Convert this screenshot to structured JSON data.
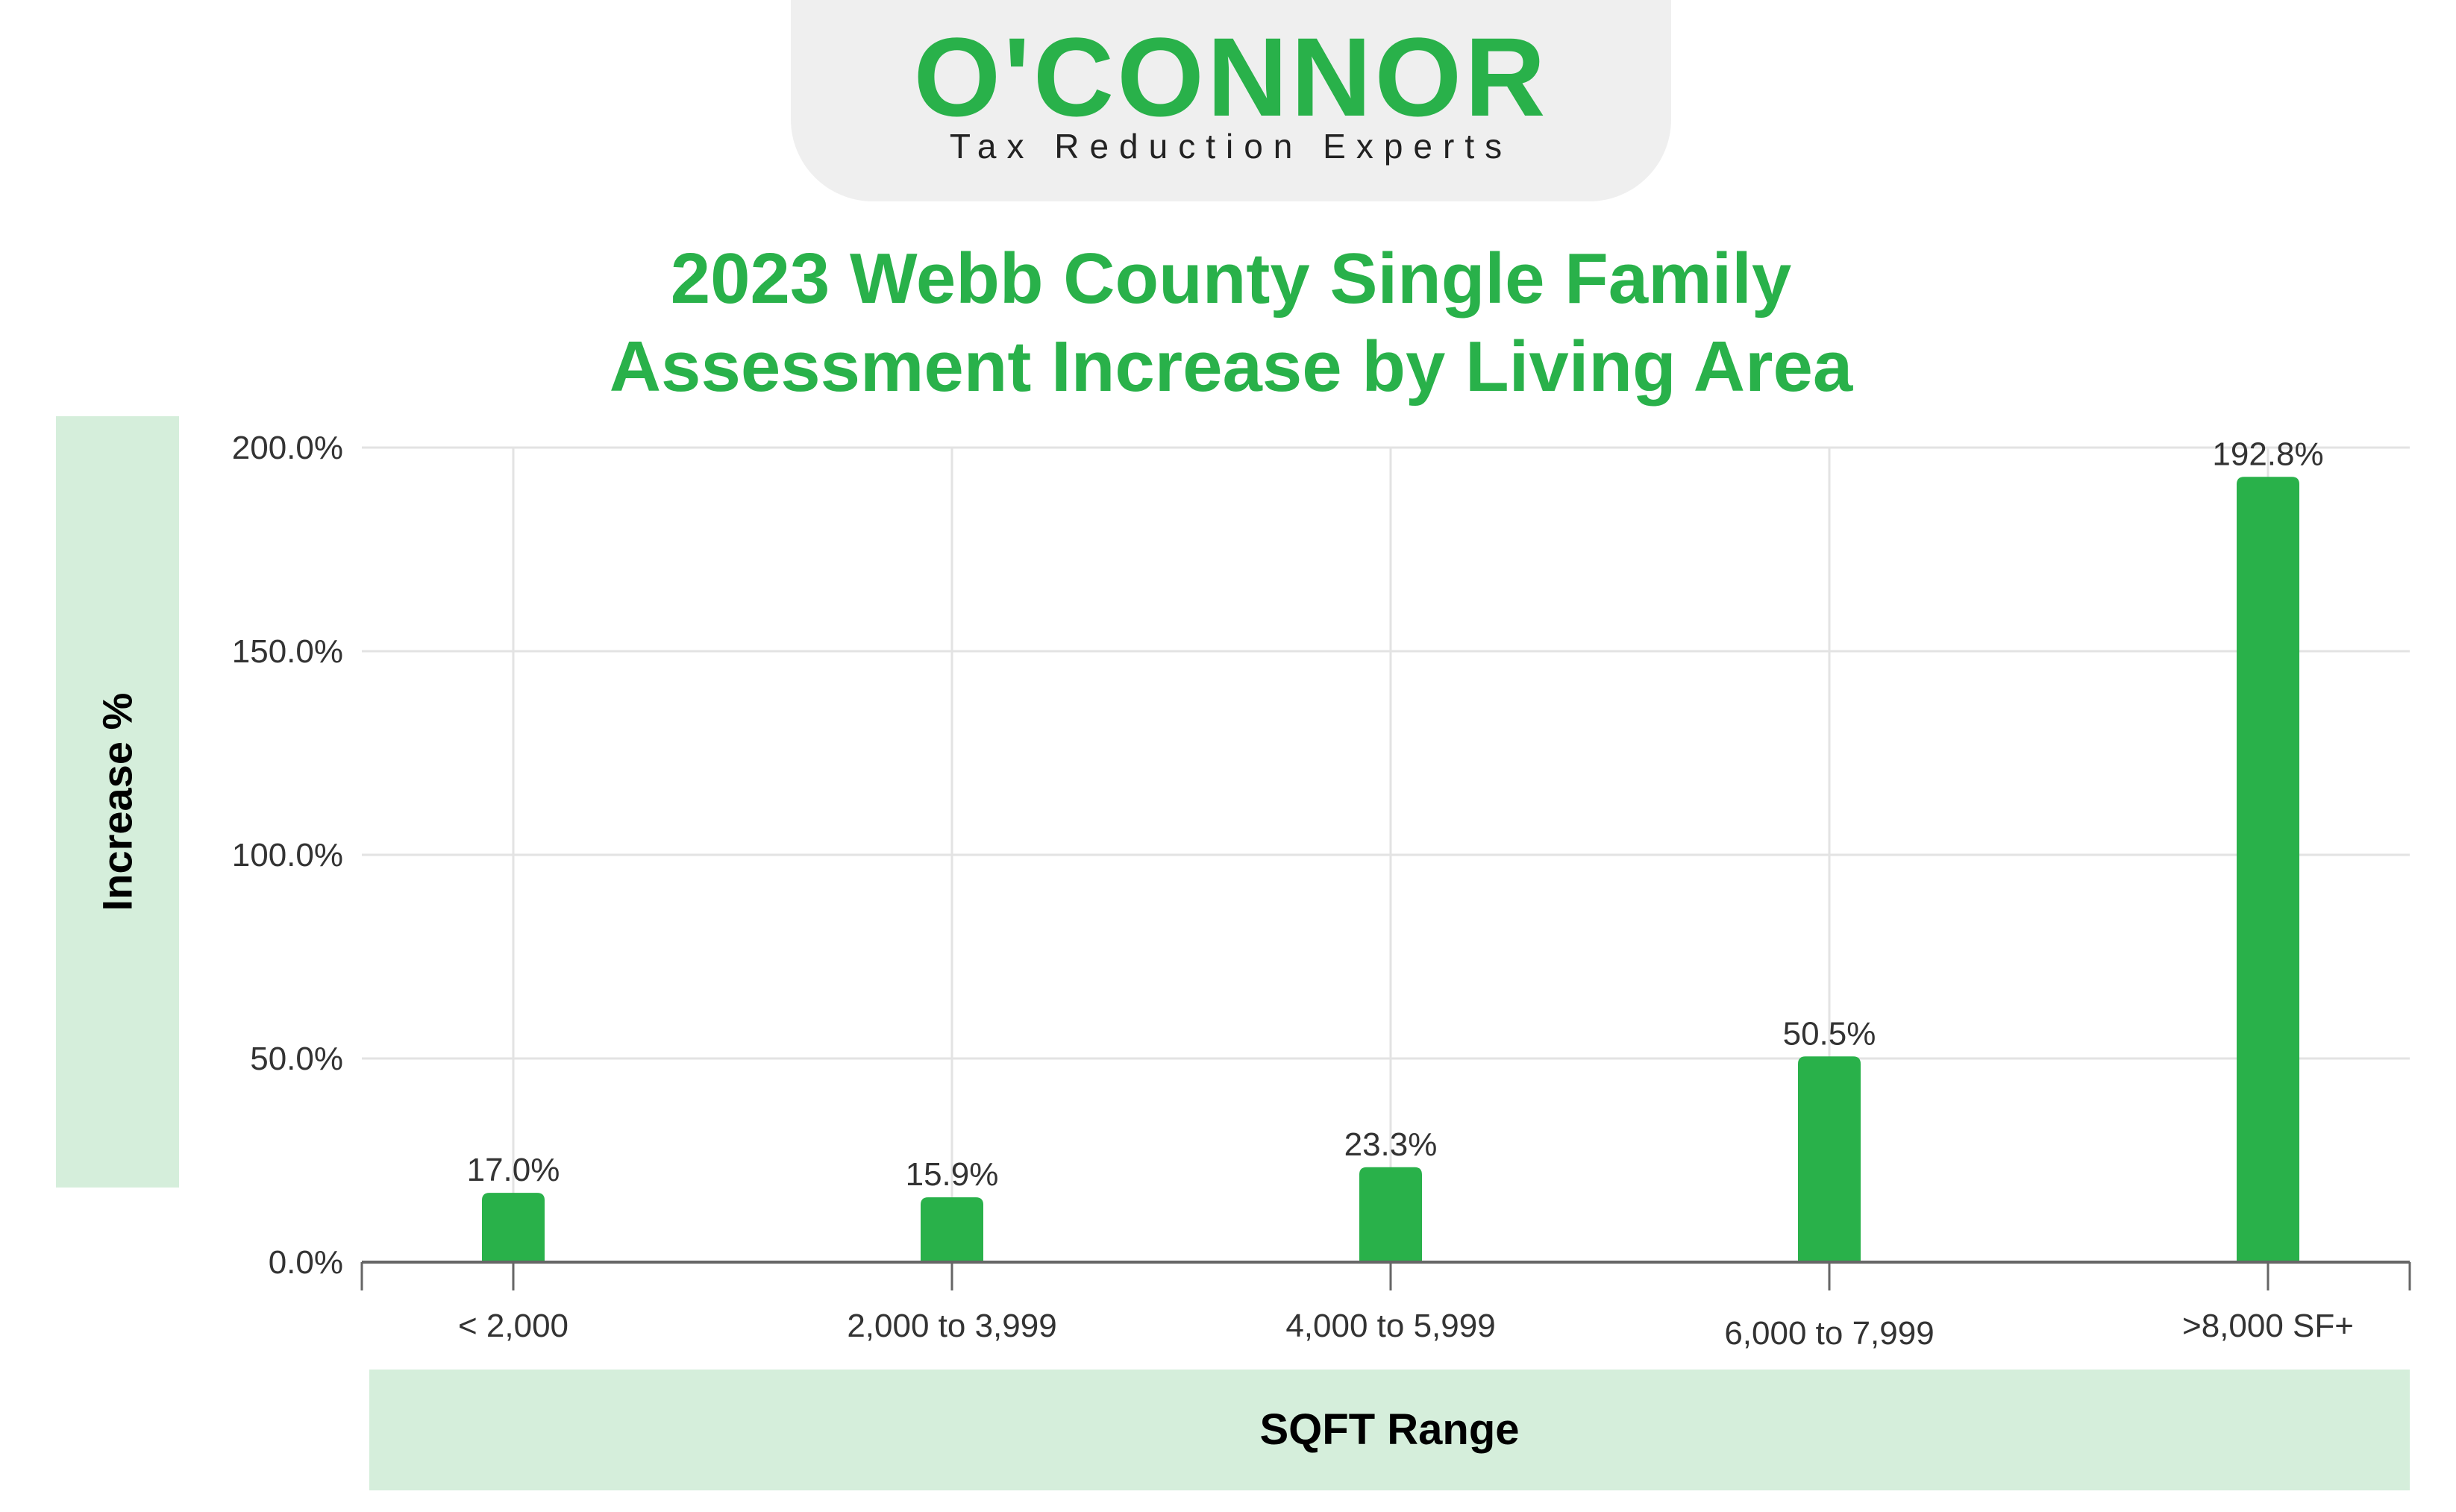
{
  "logo": {
    "brand": "O'CONNOR",
    "tagline": "Tax Reduction Experts"
  },
  "colors": {
    "accent": "#29b14a",
    "label_box": "#d5eedb",
    "grid": "#e3e3e3"
  },
  "chart_data": {
    "type": "bar",
    "title_line1": "2023 Webb County Single Family",
    "title_line2": "Assessment Increase by Living Area",
    "xlabel": "SQFT Range",
    "ylabel": "Increase %",
    "categories": [
      "< 2,000",
      "2,000 to 3,999",
      "4,000 to 5,999",
      "6,000 to 7,999",
      ">8,000 SF+"
    ],
    "values": [
      17.0,
      15.9,
      23.3,
      50.5,
      192.8
    ],
    "data_labels": [
      "17.0%",
      "15.9%",
      "23.3%",
      "50.5%",
      "192.8%"
    ],
    "ylim": [
      0,
      200
    ],
    "yticks": [
      0,
      50,
      100,
      150,
      200
    ],
    "ytick_labels": [
      "0.0%",
      "50.0%",
      "100.0%",
      "150.0%",
      "200.0%"
    ],
    "grid": true,
    "legend": "none"
  }
}
